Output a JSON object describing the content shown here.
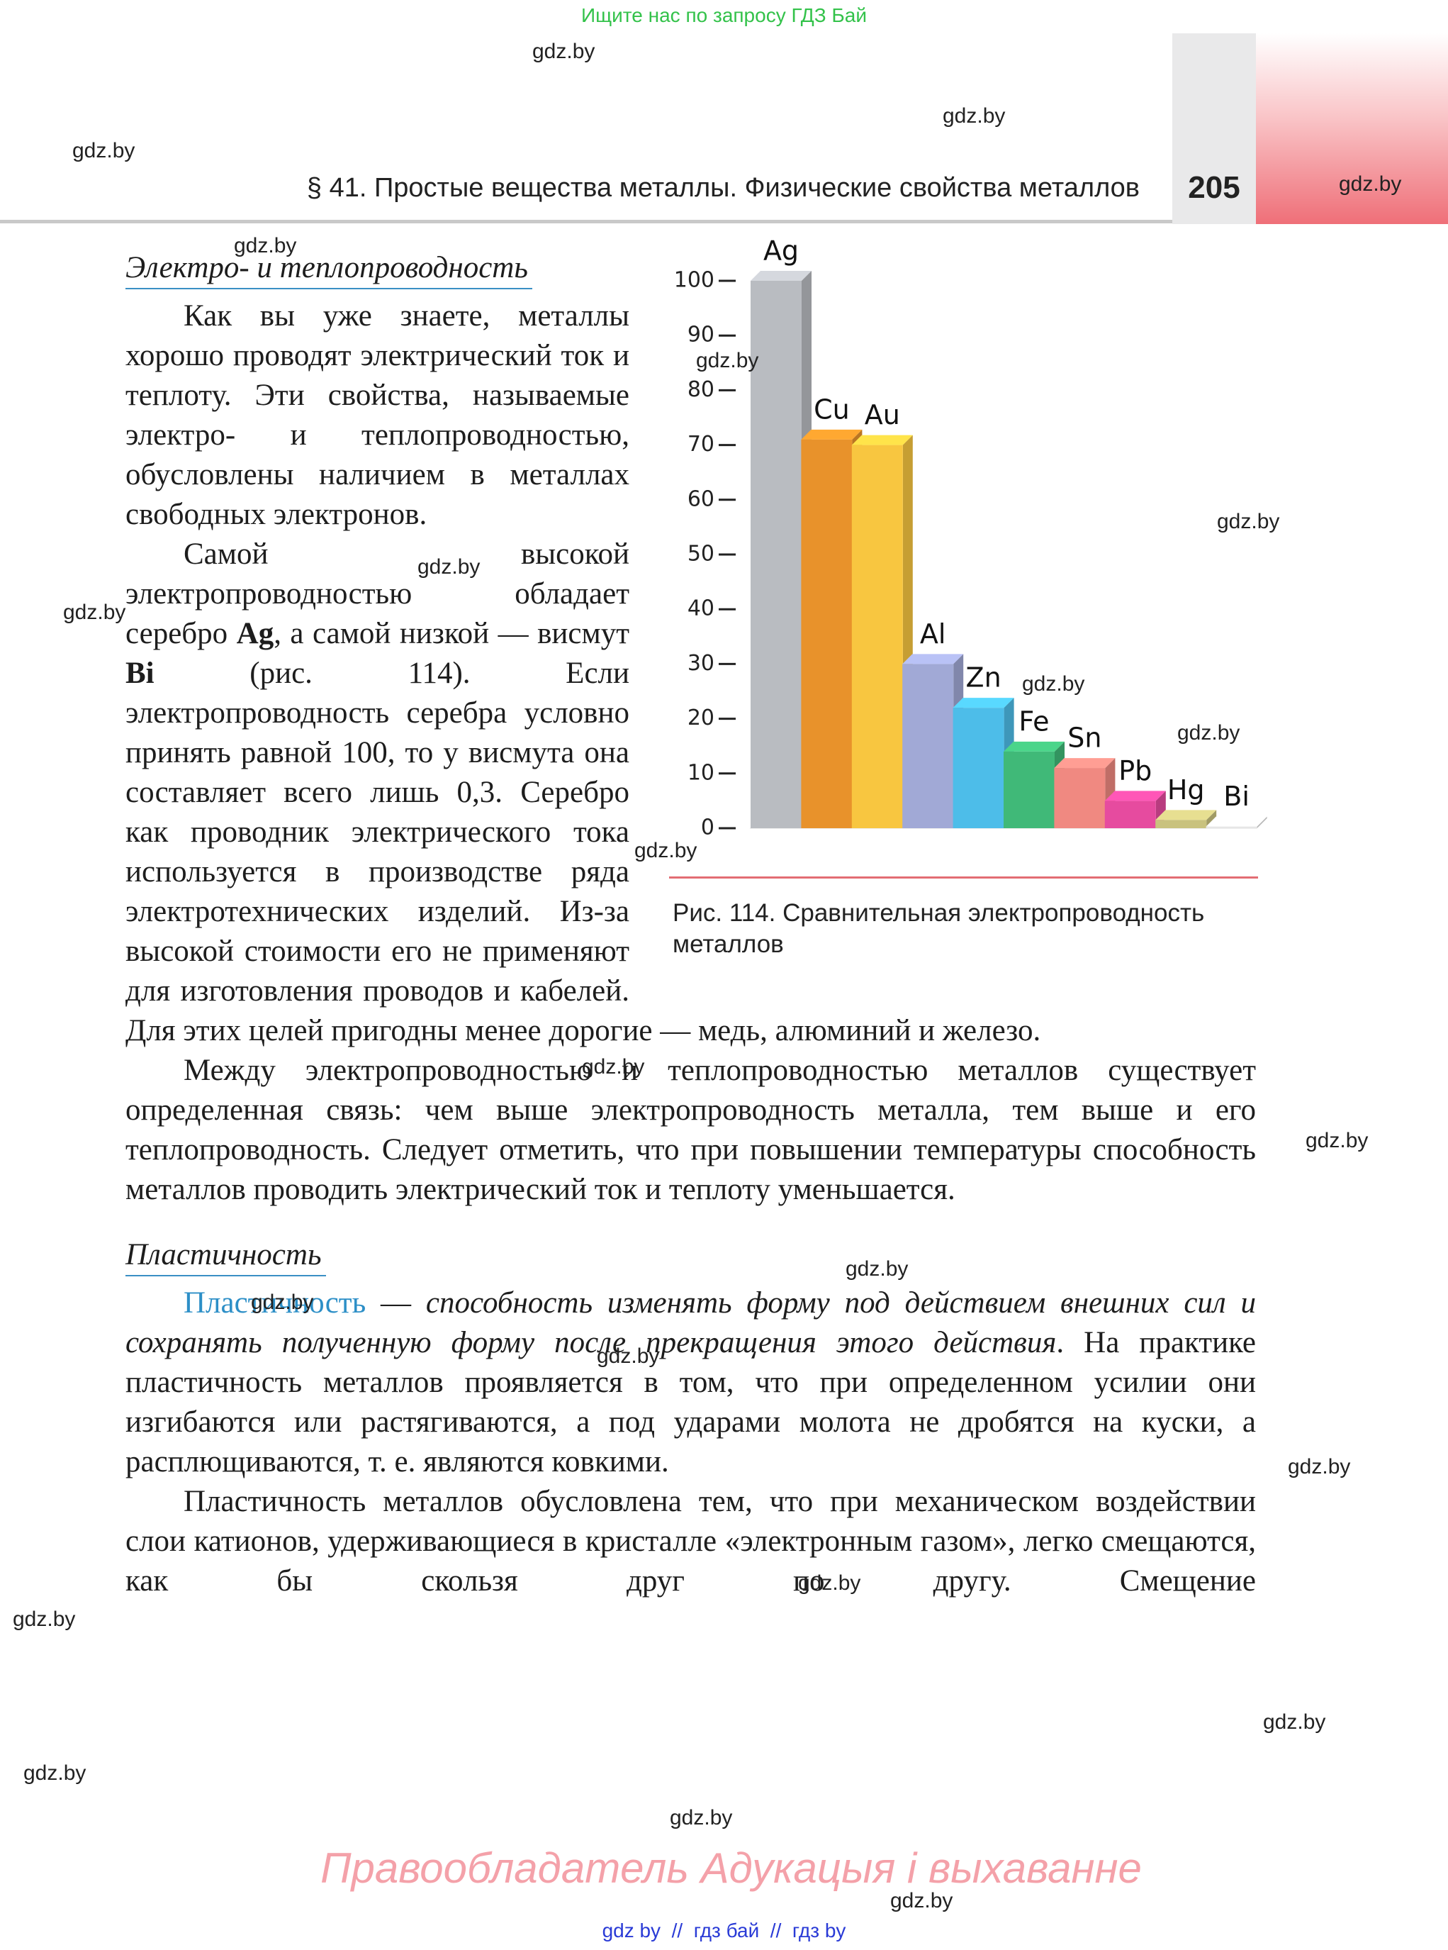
{
  "header": {
    "search_banner": "Ищите нас по запросу ГДЗ Бай",
    "section_title": "§ 41. Простые вещества металлы. Физические свойства металлов",
    "page_number": "205"
  },
  "watermarks": [
    "gdz.by",
    "gdz.by",
    "gdz.by",
    "gdz.by",
    "gdz.by",
    "gdz.by",
    "gdz.by",
    "gdz.by",
    "gdz.by",
    "gdz.by",
    "gdz.by",
    "gdz.by",
    "gdz.by",
    "gdz.by",
    "gdz.by",
    "gdz.by",
    "gdz.by",
    "gdz.by",
    "gdz.by",
    "gdz.by",
    "gdz.by",
    "gdz.by",
    "gdz.by",
    "gdz.by"
  ],
  "body": {
    "heading_1": "Электро- и теплопроводность",
    "paragraphs": [
      [
        "Как вы уже знаете, металлы хорошо проводят электрический ток и теплоту. Эти свойства, называемые электро- и теплопроводностью, обусловлены наличием в металлах свободных электронов."
      ],
      [
        "Самой высокой электропроводностью обладает серебро ",
        "Ag",
        ", а самой низкой — висмут ",
        "Bi",
        " (рис. 114). Если электропроводность серебра условно принять равной 100, то у висмута она составляет всего лишь 0,3. Серебро как проводник электрического тока используется в производстве ряда электротехнических изделий. Из-за высокой стоимости его не применяют для изготовления проводов и кабелей. Для этих целей пригодны менее дорогие — медь, алюминий и железо."
      ],
      [
        "Между электропроводностью и теплопроводностью металлов существует определенная связь: чем выше электропроводность металла, тем выше и его теплопроводность. Следует отметить, что при повышении температуры способность металлов проводить электрический ток и теплоту уменьшается."
      ]
    ],
    "heading_2": "Пластичность",
    "paragraphs_2": [
      [
        "Пластичность",
        " — ",
        "способность изменять форму под действием внешних сил и сохранять полученную форму после прекращения этого действия",
        ". На практике пластичность металлов проявляется в том, что при определенном усилии они изгибаются или растягиваются, а под ударами молота не дробятся на куски, а расплющиваются, т. е. являются ковкими."
      ],
      [
        "Пластичность металлов обусловлена тем, что при механическом воздействии слои катионов, удерживающиеся в кристалле «электронным газом», легко смещаются, как бы скользя друг по другу. Смещение"
      ]
    ]
  },
  "chart_data": {
    "type": "bar",
    "categories": [
      "Ag",
      "Cu",
      "Au",
      "Al",
      "Zn",
      "Fe",
      "Sn",
      "Pb",
      "Hg",
      "Bi"
    ],
    "values": [
      100,
      71,
      70,
      30,
      22,
      14,
      11,
      5,
      1.5,
      0.3
    ],
    "colors": [
      "#b9bcc1",
      "#e8922b",
      "#f8c640",
      "#a1a9d6",
      "#4dbde9",
      "#40b978",
      "#f08981",
      "#e64b9f",
      "#c9c27e",
      "#e6e6e6"
    ],
    "ylim": [
      0,
      100
    ],
    "yticks": [
      0,
      10,
      20,
      30,
      40,
      50,
      60,
      70,
      80,
      90,
      100
    ],
    "caption": "Рис. 114. Сравнительная электропроводность металлов"
  },
  "footer": {
    "copyright": "Правообладатель Адукацыя і выхаванне",
    "links": "gdz by  //  гдз бай  //  гдз by"
  }
}
